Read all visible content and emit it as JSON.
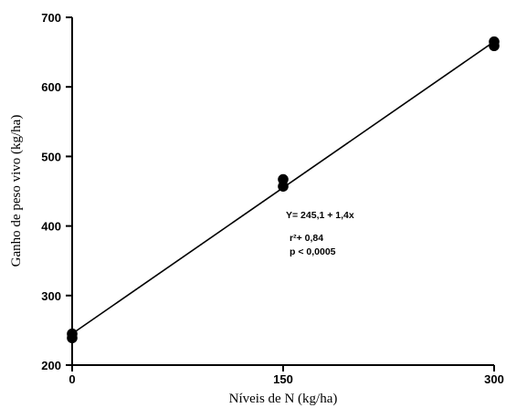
{
  "chart_data": {
    "type": "scatter",
    "title": "",
    "xlabel": "Níveis de N (kg/ha)",
    "ylabel": "Ganho de peso vivo (kg/ha)",
    "xlim": [
      0,
      300
    ],
    "ylim": [
      200,
      700
    ],
    "x_ticks": [
      0,
      150,
      300
    ],
    "x_tick_labels": [
      "0",
      "150",
      "300"
    ],
    "y_ticks": [
      200,
      300,
      400,
      500,
      600,
      700
    ],
    "y_tick_labels": [
      "200",
      "300",
      "400",
      "500",
      "600",
      "700"
    ],
    "grid": false,
    "series": [
      {
        "points": [
          {
            "x": 0,
            "y": 245
          },
          {
            "x": 0,
            "y": 239
          },
          {
            "x": 150,
            "y": 467
          },
          {
            "x": 150,
            "y": 457
          },
          {
            "x": 300,
            "y": 665
          },
          {
            "x": 300,
            "y": 659
          }
        ]
      }
    ],
    "regression": {
      "intercept": 245.1,
      "slope": 1.4,
      "x_range": [
        0,
        300
      ]
    },
    "annotations": [
      "Y= 245,1 + 1,4x",
      "r²+ 0,84",
      "p < 0,0005"
    ]
  }
}
